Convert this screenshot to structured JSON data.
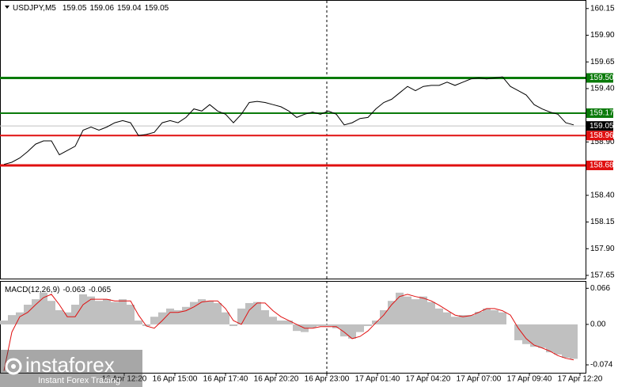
{
  "chart_data": [
    {
      "type": "line",
      "title": "USDJPY,M5",
      "ohlc": [
        159.05,
        159.06,
        159.04,
        159.05
      ],
      "x": [
        0,
        5,
        10,
        15,
        20,
        25,
        30,
        35,
        40,
        45,
        50,
        55,
        60,
        65,
        70,
        75,
        80,
        85,
        90,
        95,
        100,
        105,
        110,
        115,
        120,
        125,
        130,
        135,
        140,
        145,
        150,
        155,
        160,
        165,
        170,
        175,
        180,
        185,
        190,
        195,
        200,
        205,
        210,
        215,
        220,
        225,
        230,
        235,
        240,
        245,
        250,
        255,
        260,
        265,
        270,
        275,
        280,
        285,
        290,
        295,
        300,
        305,
        310,
        315,
        320,
        325,
        330,
        335,
        340,
        345,
        350,
        355,
        360
      ],
      "series": [
        {
          "color": "#000000",
          "values": [
            158.69,
            158.71,
            158.75,
            158.81,
            158.88,
            158.91,
            158.91,
            158.78,
            158.82,
            158.86,
            159.01,
            159.04,
            159.01,
            159.04,
            159.08,
            159.1,
            159.08,
            158.96,
            158.97,
            158.99,
            159.08,
            159.1,
            159.08,
            159.13,
            159.21,
            159.19,
            159.25,
            159.19,
            159.16,
            159.08,
            159.16,
            159.27,
            159.28,
            159.27,
            159.25,
            159.23,
            159.19,
            159.13,
            159.16,
            159.18,
            159.16,
            159.19,
            159.16,
            159.06,
            159.08,
            159.12,
            159.13,
            159.21,
            159.27,
            159.3,
            159.36,
            159.42,
            159.38,
            159.42,
            159.43,
            159.43,
            159.46,
            159.43,
            159.46,
            159.49,
            159.5,
            159.49,
            159.5,
            159.51,
            159.42,
            159.38,
            159.34,
            159.25,
            159.21,
            159.18,
            159.16,
            159.08,
            159.06
          ]
        }
      ],
      "xlim": [
        -2.5,
        367.5
      ],
      "xticks": [
        {
          "value": 76,
          "label": "16 Apr 12:20"
        },
        {
          "value": 108,
          "label": "16 Apr 15:00"
        },
        {
          "value": 140,
          "label": "16 Apr 17:40"
        },
        {
          "value": 172,
          "label": "16 Apr 20:20"
        },
        {
          "value": 204,
          "label": "16 Apr 23:00"
        },
        {
          "value": 236,
          "label": "17 Apr 01:40"
        },
        {
          "value": 268,
          "label": "17 Apr 04:20"
        },
        {
          "value": 300,
          "label": "17 Apr 07:00"
        },
        {
          "value": 332,
          "label": "17 Apr 09:40"
        },
        {
          "value": 364,
          "label": "17 Apr 12:20"
        }
      ],
      "ylim": [
        157.62,
        160.23
      ],
      "yticks": [
        160.15,
        {
          "value": 159.9,
          "label": "159.90"
        },
        159.65,
        {
          "value": 159.4,
          "label": "159.40"
        },
        {
          "value": 158.9,
          "label": "158.90"
        },
        {
          "value": 158.4,
          "label": "158.40"
        },
        158.15,
        {
          "value": 157.9,
          "label": "157.90"
        },
        157.65
      ],
      "levels": [
        {
          "value": 159.5,
          "label": "159.50",
          "color": "#0a7a0a"
        },
        {
          "value": 159.17,
          "label": "159.17",
          "color": "#0a7a0a"
        },
        {
          "value": 158.96,
          "label": "158.96",
          "color": "#e01010"
        },
        {
          "value": 158.68,
          "label": "158.68",
          "color": "#e01010"
        }
      ],
      "current": 159.05
    },
    {
      "type": "macd",
      "title": "MACD(12,26,9)",
      "readout": [
        -0.063,
        -0.065
      ],
      "series": [
        {
          "color": "#c0c0c0",
          "values": [
            0.007,
            0.017,
            0.022,
            0.036,
            0.046,
            0.058,
            0.043,
            0.026,
            0.022,
            0.036,
            0.055,
            0.051,
            0.043,
            0.046,
            0.041,
            0.046,
            0.036,
            0.007,
            -0.003,
            0.014,
            0.022,
            0.029,
            0.026,
            0.032,
            0.041,
            0.046,
            0.043,
            0.039,
            0.022,
            -0.003,
            0.029,
            0.039,
            0.041,
            0.026,
            0.014,
            0.007,
            0.007,
            -0.012,
            -0.014,
            -0.006,
            -0.003,
            -0.003,
            -0.007,
            -0.022,
            -0.026,
            -0.014,
            -0.003,
            0.007,
            0.026,
            0.043,
            0.058,
            0.051,
            0.046,
            0.051,
            0.041,
            0.029,
            0.022,
            0.014,
            0.017,
            0.017,
            0.023,
            0.029,
            0.026,
            0.022,
            0,
            -0.029,
            -0.036,
            -0.041,
            -0.043,
            -0.051,
            -0.055,
            -0.061,
            -0.063
          ]
        },
        {
          "color": "#e01010",
          "values": [
            -0.085,
            -0.014,
            0.014,
            0.022,
            0.036,
            0.049,
            0.055,
            0.036,
            0.014,
            0.014,
            0.036,
            0.046,
            0.046,
            0.046,
            0.043,
            0.043,
            0.043,
            0.017,
            -0.003,
            -0.007,
            0.007,
            0.022,
            0.022,
            0.025,
            0.032,
            0.041,
            0.043,
            0.043,
            0.029,
            0.007,
            0,
            0.026,
            0.039,
            0.039,
            0.025,
            0.014,
            0.007,
            0,
            -0.007,
            -0.007,
            -0.004,
            -0.004,
            -0.004,
            -0.014,
            -0.026,
            -0.022,
            -0.012,
            0.003,
            0.017,
            0.036,
            0.051,
            0.055,
            0.051,
            0.048,
            0.043,
            0.035,
            0.026,
            0.017,
            0.014,
            0.016,
            0.022,
            0.029,
            0.029,
            0.025,
            0.017,
            -0.007,
            -0.026,
            -0.038,
            -0.043,
            -0.049,
            -0.057,
            -0.062,
            -0.065
          ]
        }
      ],
      "ylim": [
        -0.087,
        0.078
      ],
      "yticks": [
        0.066,
        {
          "value": 0,
          "label": "0.00"
        },
        -0.074
      ]
    }
  ],
  "watermark": {
    "brand": "instaforex",
    "tagline": "Instant Forex Trading"
  }
}
